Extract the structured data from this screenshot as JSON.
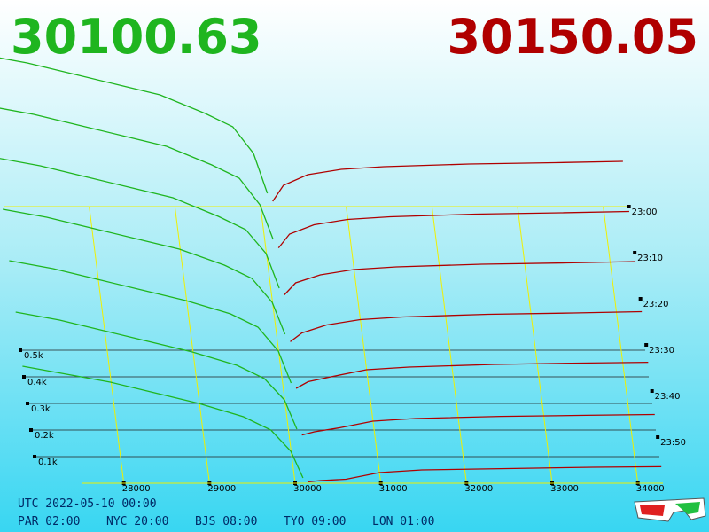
{
  "chart_data": {
    "type": "depth3d",
    "bid_price": "30100.63",
    "ask_price": "30150.05",
    "bid_color": "#1fb51f",
    "ask_color": "#b00000",
    "xlim": [
      27000,
      34500
    ],
    "xticks": [
      28000,
      29000,
      30000,
      31000,
      32000,
      33000,
      34000
    ],
    "depth_ticks": [
      {
        "value": 100,
        "label": "0.1k"
      },
      {
        "value": 200,
        "label": "0.2k"
      },
      {
        "value": 300,
        "label": "0.3k"
      },
      {
        "value": 400,
        "label": "0.4k"
      },
      {
        "value": 500,
        "label": "0.5k"
      }
    ],
    "time_ticks": [
      "23:00",
      "23:10",
      "23:20",
      "23:30",
      "23:40",
      "23:50"
    ],
    "bid_prices": [
      30100,
      30000,
      29800,
      29500,
      29000,
      28500,
      28000,
      27500,
      27000
    ],
    "ask_prices": [
      30150,
      30300,
      30600,
      31000,
      31500,
      32500,
      33500,
      34300
    ],
    "bids": [
      [
        50,
        200,
        300,
        350,
        420,
        460,
        500,
        540,
        570
      ],
      [
        50,
        180,
        280,
        330,
        400,
        440,
        480,
        520,
        550
      ],
      [
        40,
        170,
        260,
        310,
        380,
        420,
        460,
        500,
        530
      ],
      [
        40,
        160,
        250,
        300,
        360,
        400,
        440,
        480,
        510
      ],
      [
        30,
        150,
        240,
        290,
        340,
        380,
        420,
        460,
        490
      ],
      [
        30,
        140,
        220,
        270,
        320,
        360,
        400,
        440,
        470
      ],
      [
        20,
        120,
        200,
        250,
        300,
        340,
        380,
        410,
        440
      ]
    ],
    "asks": [
      [
        20,
        80,
        120,
        140,
        150,
        160,
        165,
        170
      ],
      [
        18,
        70,
        105,
        125,
        135,
        145,
        150,
        155
      ],
      [
        15,
        60,
        90,
        110,
        120,
        130,
        135,
        140
      ],
      [
        12,
        45,
        75,
        95,
        105,
        115,
        120,
        125
      ],
      [
        10,
        35,
        55,
        80,
        90,
        100,
        105,
        108
      ],
      [
        8,
        20,
        35,
        60,
        70,
        78,
        82,
        85
      ],
      [
        5,
        10,
        15,
        40,
        50,
        55,
        60,
        62
      ]
    ],
    "footer": [
      "UTC 2022-05-10 00:00",
      "PAR 02:00",
      "NYC 20:00",
      "BJS 08:00",
      "TYO 09:00",
      "LON 01:00"
    ]
  }
}
